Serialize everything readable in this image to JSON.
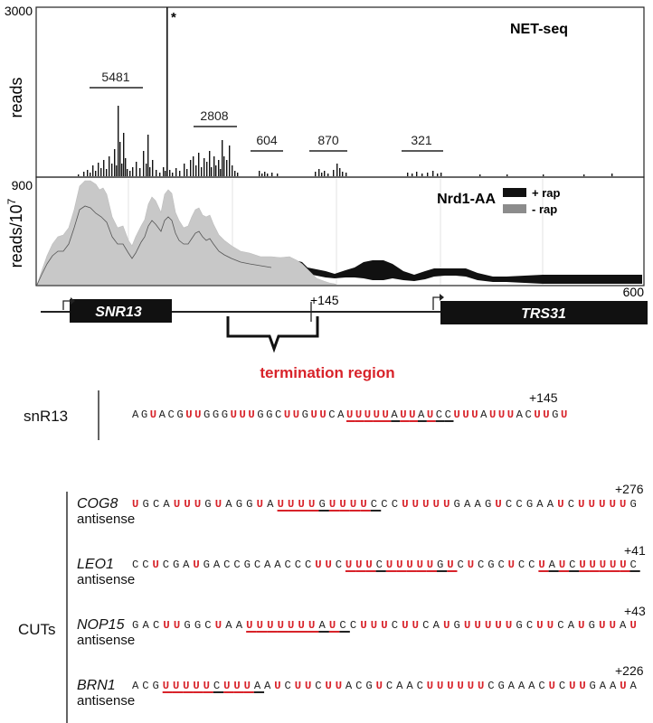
{
  "net_seq": {
    "title": "NET-seq",
    "ymax_label": "3000",
    "ylabel": "reads",
    "star": "*",
    "counts": [
      {
        "label": "5481"
      },
      {
        "label": "2808"
      },
      {
        "label": "604"
      },
      {
        "label": "870"
      },
      {
        "label": "321"
      }
    ]
  },
  "nrd1": {
    "title": "Nrd1-AA",
    "ymax_label": "900",
    "ylabel": "reads/10",
    "ylabel_sup": "7",
    "legend": [
      {
        "label": "+ rap",
        "color": "#111111"
      },
      {
        "label": "- rap",
        "color": "#8c8c8c"
      }
    ]
  },
  "genes": {
    "left": "SNR13",
    "right": "TRS31",
    "pos_mark": "+145",
    "end_mark": "600",
    "termination": "termination region"
  },
  "colors": {
    "u_highlight": "#d8232a",
    "termination": "#d8232a",
    "minus_rap_fill": "#c8c8c8"
  },
  "snr13": {
    "label": "snR13",
    "pos": "+145",
    "seq": "AGUACGUUGGGUUUGGCUUGUUCAUUUUUAUUAUCCUUUAUUUACUUGU",
    "underline": [
      [
        24,
        35
      ]
    ]
  },
  "cuts": {
    "label": "CUTs",
    "antisense": "antisense",
    "items": [
      {
        "gene": "COG8",
        "pos": "+276",
        "seq": "UGCAUUUGUAGGUAUUUUGUUUUCCCUUUUUGAAGUCCGAAUCUUUUUG",
        "underline": [
          [
            14,
            23
          ]
        ]
      },
      {
        "gene": "LEO1",
        "pos": "+41",
        "seq": "CCUCGAUGACCGCAACCCUUCUUUCUUUUUGUCUCGCUCCUAUCUUUUUC",
        "underline": [
          [
            21,
            31
          ],
          [
            40,
            49
          ]
        ]
      },
      {
        "gene": "NOP15",
        "pos": "+43",
        "seq": "GACUUGGCUAAUUUUUUUAUCCUUUCUUCAUGUUUUUGCUUCAUGUUAU",
        "underline": [
          [
            11,
            20
          ]
        ]
      },
      {
        "gene": "BRN1",
        "pos": "+226",
        "seq": "ACGUUUUUCUUUAAUCUUCUUACGUCAACUUUUUUCGAAACUCUUGAAUA",
        "underline": [
          [
            3,
            12
          ]
        ]
      }
    ]
  }
}
